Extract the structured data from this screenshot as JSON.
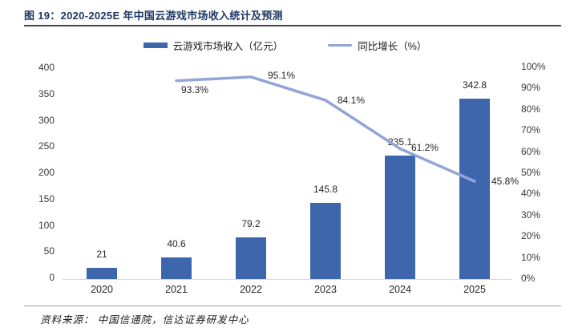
{
  "header": {
    "title": "图 19：2020-2025E 年中国云游戏市场收入统计及预测"
  },
  "footer": {
    "source": "资料来源： 中国信通院，信达证券研发中心"
  },
  "chart_data": {
    "type": "bar",
    "title": "图 19：2020-2025E 年中国云游戏市场收入统计及预测",
    "categories": [
      "2020",
      "2021",
      "2022",
      "2023",
      "2024",
      "2025"
    ],
    "series": [
      {
        "name": "云游戏市场收入（亿元）",
        "type": "bar",
        "axis": "left",
        "values": [
          21,
          40.6,
          79.2,
          145.8,
          235.1,
          342.8
        ],
        "labels": [
          "21",
          "40.6",
          "79.2",
          "145.8",
          "235.1",
          "342.8"
        ],
        "color": "#3e66ad"
      },
      {
        "name": "同比增长（%）",
        "type": "line",
        "axis": "right",
        "values": [
          null,
          93.3,
          95.1,
          84.1,
          61.2,
          45.8
        ],
        "labels": [
          "",
          "93.3%",
          "95.1%",
          "84.1%",
          "61.2%",
          "45.8%"
        ],
        "color": "#93a4d8"
      }
    ],
    "left_axis": {
      "min": 0,
      "max": 400,
      "step": 50,
      "tick_labels": [
        "0",
        "50",
        "100",
        "150",
        "200",
        "250",
        "300",
        "350",
        "400"
      ]
    },
    "right_axis": {
      "min": 0,
      "max": 100,
      "step": 10,
      "tick_labels": [
        "0%",
        "10%",
        "20%",
        "30%",
        "40%",
        "50%",
        "60%",
        "70%",
        "80%",
        "90%",
        "100%"
      ]
    },
    "legend_position": "top",
    "grid": false
  }
}
